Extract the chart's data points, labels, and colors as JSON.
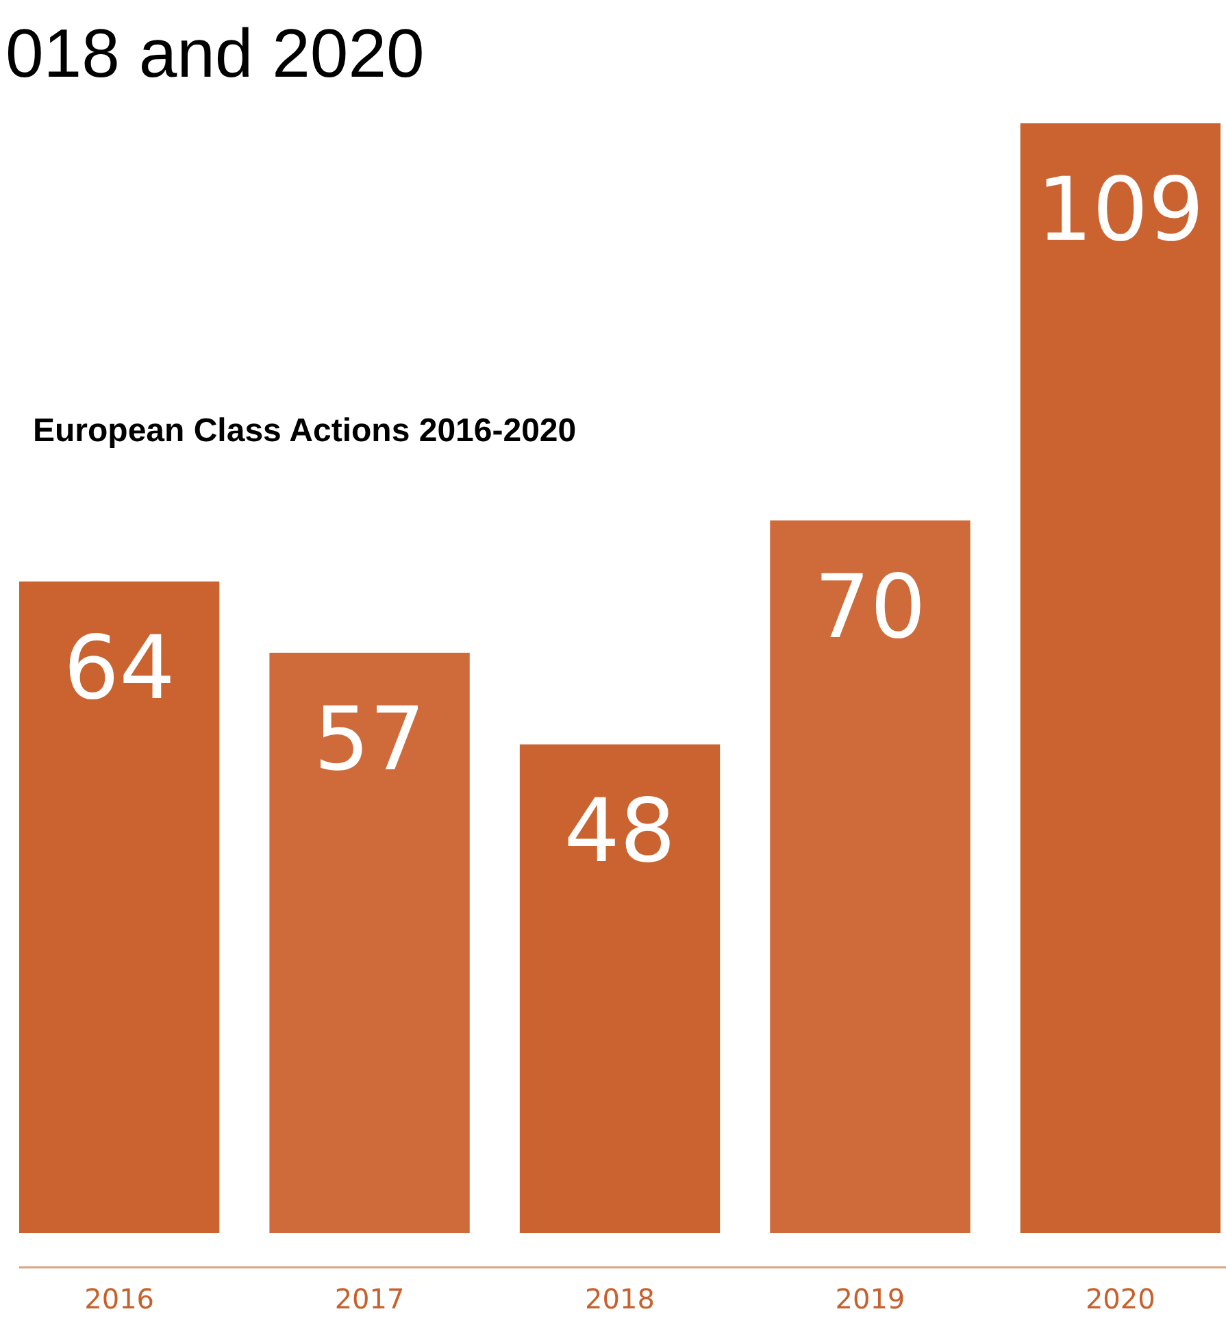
{
  "chart_data": {
    "type": "bar",
    "title": "018 and 2020",
    "subtitle": "European Class Actions 2016-2020",
    "categories": [
      "2016",
      "2017",
      "2018",
      "2019",
      "2020"
    ],
    "values": [
      64,
      57,
      48,
      70,
      109
    ],
    "colors": [
      "#cb6330",
      "#cf6b3a",
      "#cb6330",
      "#cf6b3a",
      "#cb6330"
    ],
    "data_labels": true
  }
}
